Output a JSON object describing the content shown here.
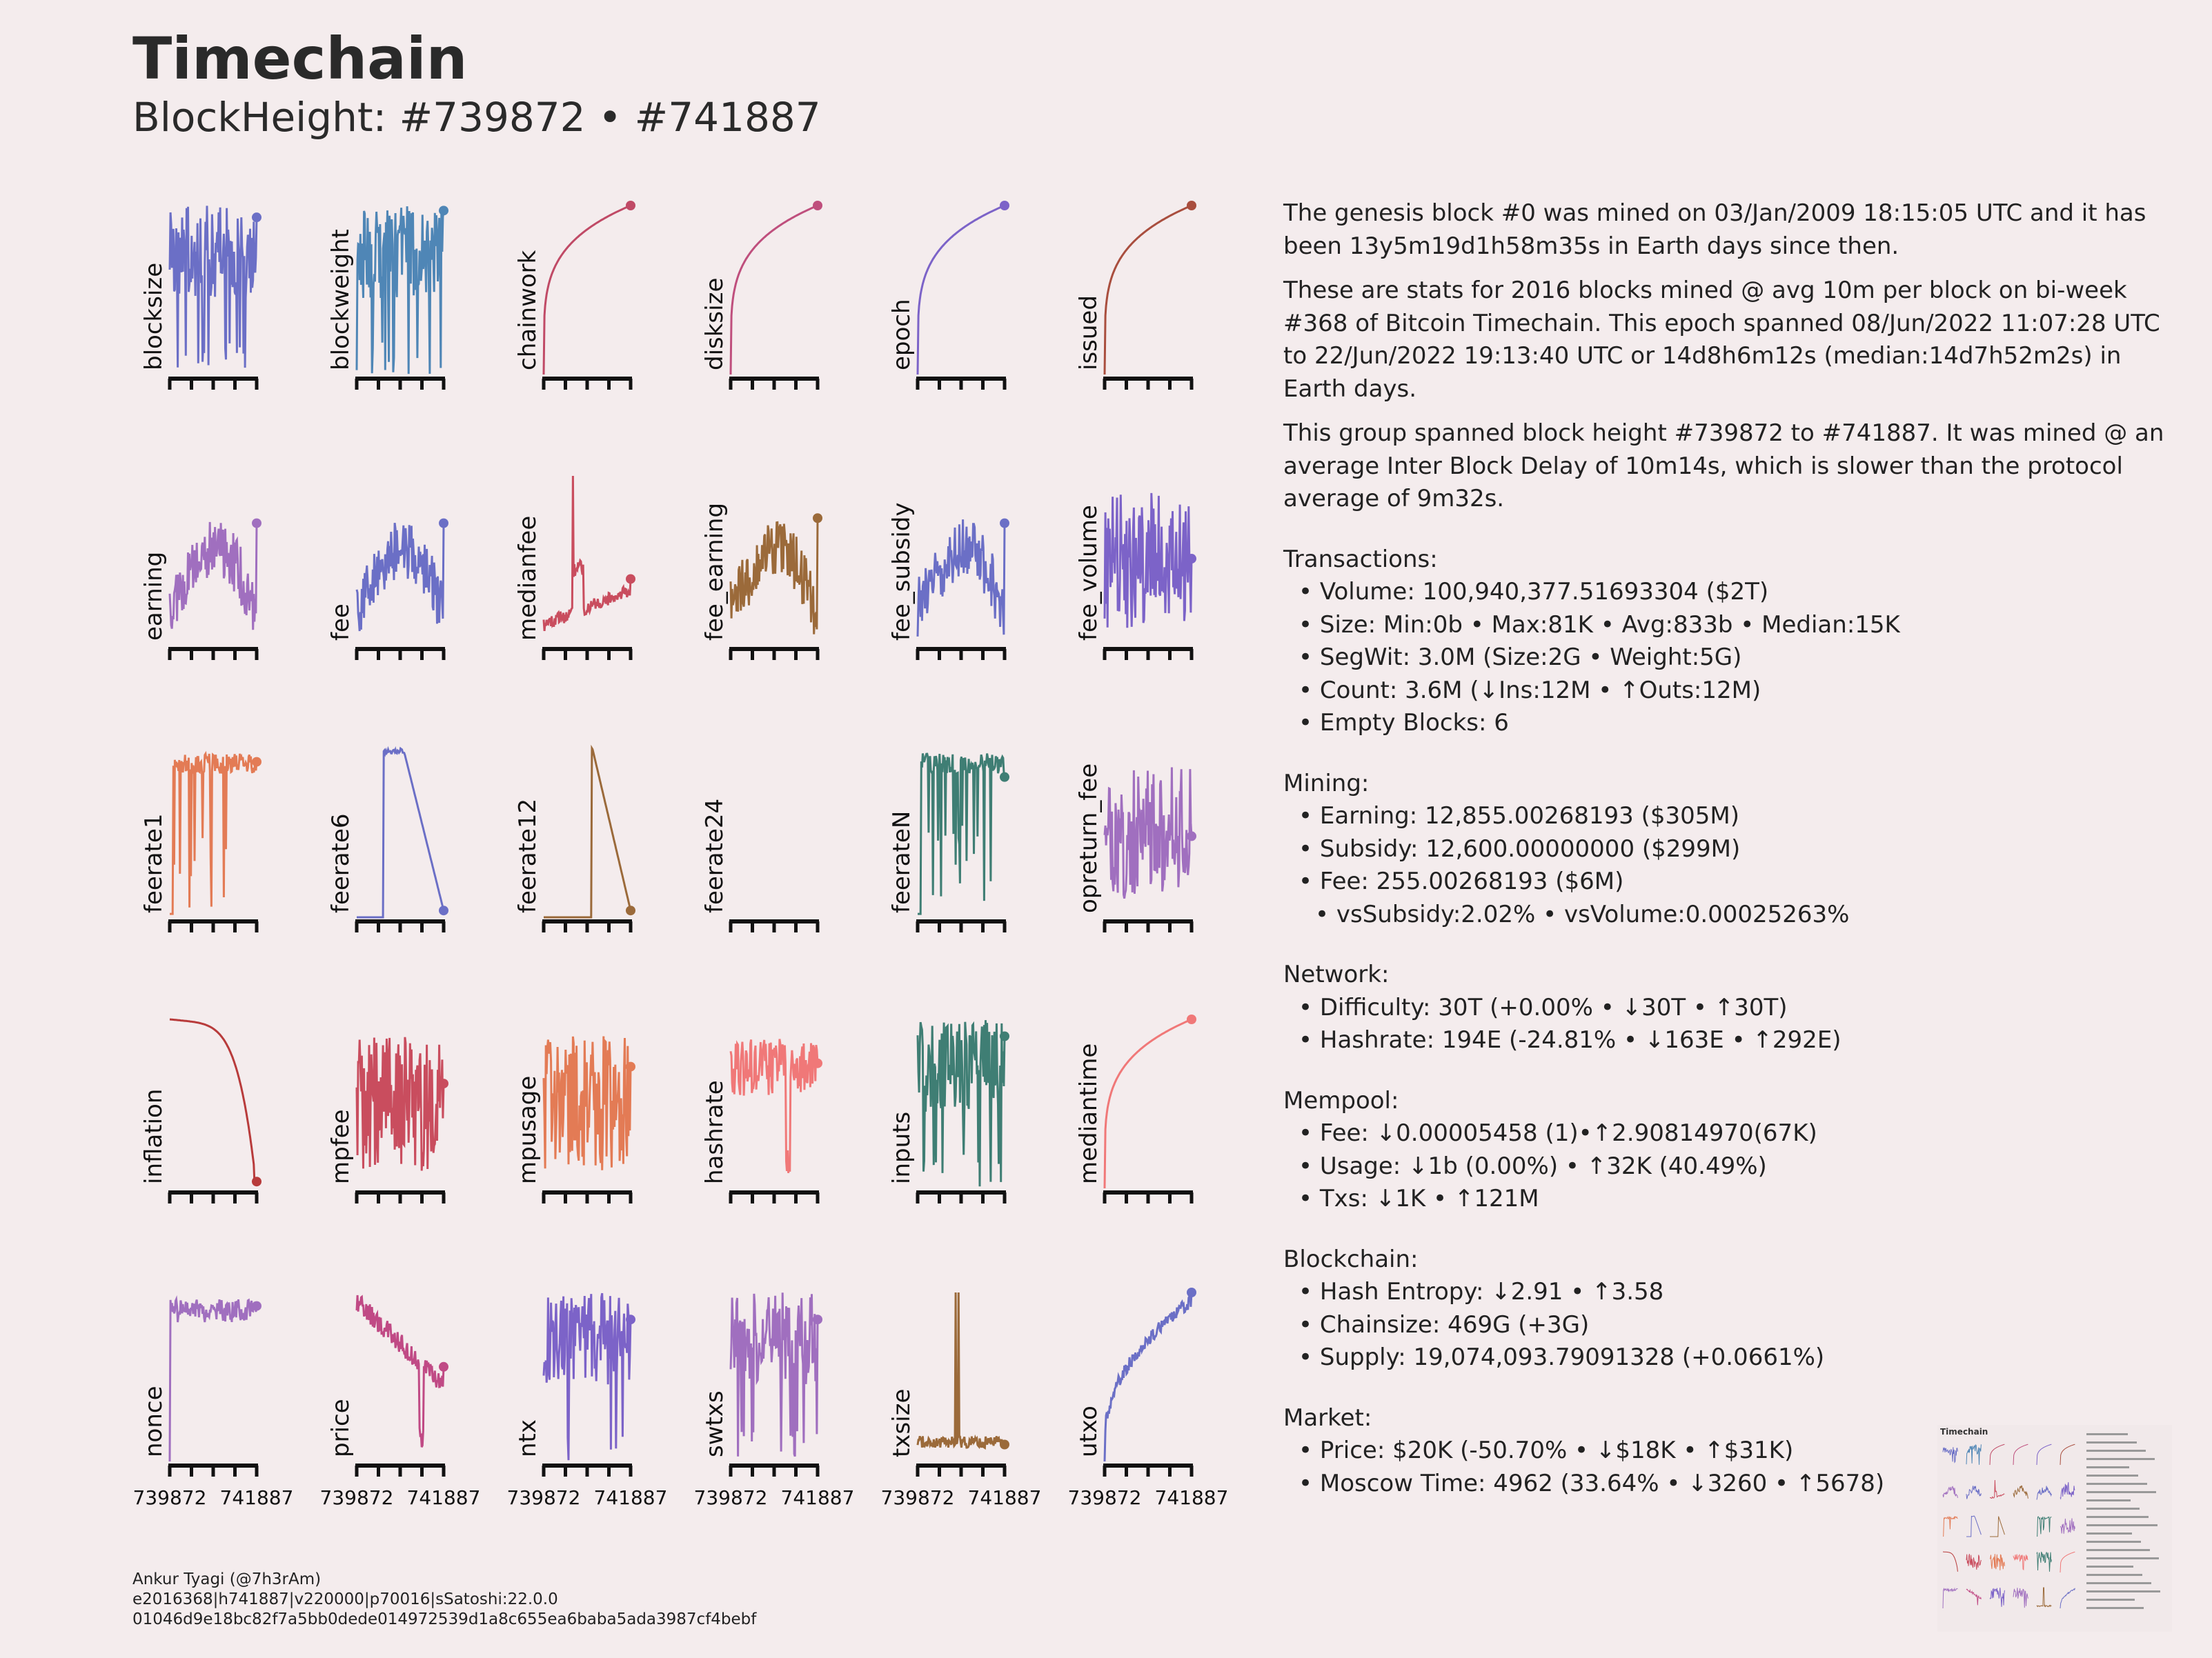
{
  "header": {
    "title": "Timechain",
    "subtitle": "BlockHeight: #739872 • #741887"
  },
  "chart_data": {
    "type": "line",
    "layout": "small-multiples 5x6, sparklines without y-axis values",
    "x_range": [
      739872,
      741887
    ],
    "x_tick_labels": [
      "739872",
      "741887"
    ],
    "panels": [
      {
        "name": "blocksize",
        "color": "#6b6fc6",
        "shape": "noisy_high",
        "end": 0.93
      },
      {
        "name": "blockweight",
        "color": "#4f86b6",
        "shape": "noisy_high",
        "end": 0.97
      },
      {
        "name": "chainwork",
        "color": "#c04a66",
        "shape": "log_rise",
        "end": 1.0
      },
      {
        "name": "disksize",
        "color": "#bf4f7d",
        "shape": "log_rise",
        "end": 1.0
      },
      {
        "name": "epoch",
        "color": "#7c63c8",
        "shape": "log_rise",
        "end": 1.0
      },
      {
        "name": "issued",
        "color": "#a94e3e",
        "shape": "log_rise",
        "end": 1.0
      },
      {
        "name": "earning",
        "color": "#a06fbf",
        "shape": "noisy_hump",
        "end": 0.72
      },
      {
        "name": "fee",
        "color": "#6b6fc6",
        "shape": "noisy_hump",
        "end": 0.72
      },
      {
        "name": "medianfee",
        "color": "#c94d5e",
        "shape": "spike_mid",
        "end": 0.39
      },
      {
        "name": "fee_earning",
        "color": "#9b6a3a",
        "shape": "noisy_hump",
        "end": 0.75
      },
      {
        "name": "fee_subsidy",
        "color": "#6b6fc6",
        "shape": "noisy_hump",
        "end": 0.72
      },
      {
        "name": "fee_volume",
        "color": "#7c63c8",
        "shape": "noisy_mid",
        "end": 0.51
      },
      {
        "name": "feerate1",
        "color": "#e37b55",
        "shape": "plateau_drops",
        "end": 0.92
      },
      {
        "name": "feerate6",
        "color": "#6b6fc6",
        "shape": "box_fall",
        "end": 0.04
      },
      {
        "name": "feerate12",
        "color": "#9b6a3a",
        "shape": "late_fall",
        "end": 0.04
      },
      {
        "name": "feerate24",
        "color": "#9b6a3a",
        "shape": "empty",
        "end": null
      },
      {
        "name": "feerateN",
        "color": "#3f7e74",
        "shape": "plateau_drops",
        "end": 0.83
      },
      {
        "name": "opreturn_fee",
        "color": "#a06fbf",
        "shape": "noisy_mid",
        "end": 0.48
      },
      {
        "name": "inflation",
        "color": "#b83b3b",
        "shape": "fall_curve",
        "end": 0.04
      },
      {
        "name": "mpfee",
        "color": "#c94d5e",
        "shape": "noisy_mid",
        "end": 0.62
      },
      {
        "name": "mpusage",
        "color": "#e37b55",
        "shape": "noisy_mid",
        "end": 0.72
      },
      {
        "name": "hashrate",
        "color": "#f07878",
        "shape": "high_dip",
        "end": 0.74
      },
      {
        "name": "inputs",
        "color": "#3f7e74",
        "shape": "noisy_high",
        "end": 0.9
      },
      {
        "name": "mediantime",
        "color": "#f07878",
        "shape": "log_rise",
        "end": 1.0
      },
      {
        "name": "nonce",
        "color": "#a06fbf",
        "shape": "jump_flat",
        "end": 0.92
      },
      {
        "name": "price",
        "color": "#c04a85",
        "shape": "decline_noisy",
        "end": 0.56
      },
      {
        "name": "ntx",
        "color": "#7c63c8",
        "shape": "noisy_high",
        "end": 0.84
      },
      {
        "name": "swtxs",
        "color": "#a06fbf",
        "shape": "noisy_high",
        "end": 0.84
      },
      {
        "name": "txsize",
        "color": "#9b6a3a",
        "shape": "flat_spikes",
        "end": 0.1
      },
      {
        "name": "utxo",
        "color": "#6b6fc6",
        "shape": "rise_noisy",
        "end": 1.0
      }
    ]
  },
  "stats": {
    "intro1": "The genesis block #0 was mined on 03/Jan/2009 18:15:05 UTC and it has been 13y5m19d1h58m35s in Earth days since then.",
    "intro2": "These are stats for 2016 blocks mined @ avg 10m per block on bi-week #368 of Bitcoin Timechain. This epoch spanned 08/Jun/2022 11:07:28 UTC to 22/Jun/2022 19:13:40 UTC or 14d8h6m12s (median:14d7h52m2s) in Earth days.",
    "intro3": "This group spanned block height #739872 to #741887. It was mined @ an average Inter Block Delay of 10m14s, which is slower than the protocol average of 9m32s.",
    "transactions": {
      "heading": "Transactions:",
      "volume": "Volume: 100,940,377.51693304 ($2T)",
      "size": "Size: Min:0b • Max:81K • Avg:833b • Median:15K",
      "segwit": "SegWit: 3.0M (Size:2G • Weight:5G)",
      "count": "Count: 3.6M (↓Ins:12M • ↑Outs:12M)",
      "empty": "Empty Blocks: 6"
    },
    "mining": {
      "heading": "Mining:",
      "earning": "Earning: 12,855.00268193 ($305M)",
      "subsidy": "Subsidy: 12,600.00000000 ($299M)",
      "fee": "Fee: 255.00268193 ($6M)",
      "vs": "vsSubsidy:2.02% • vsVolume:0.00025263%"
    },
    "network": {
      "heading": "Network:",
      "difficulty": "Difficulty: 30T (+0.00% • ↓30T • ↑30T)",
      "hashrate": "Hashrate: 194E (-24.81% • ↓163E • ↑292E)"
    },
    "mempool": {
      "heading": "Mempool:",
      "fee": "Fee: ↓0.00005458 (1)•↑2.90814970(67K)",
      "usage": "Usage: ↓1b (0.00%) • ↑32K (40.49%)",
      "txs": "Txs: ↓1K • ↑121M"
    },
    "blockchain": {
      "heading": "Blockchain:",
      "entropy": "Hash Entropy: ↓2.91 • ↑3.58",
      "chainsize": "Chainsize: 469G (+3G)",
      "supply": "Supply: 19,074,093.79091328 (+0.0661%)"
    },
    "market": {
      "heading": "Market:",
      "price": "Price: $20K (-50.70% • ↓$18K • ↑$31K)",
      "moscow": "Moscow Time: 4962 (33.64% • ↓3260 • ↑5678)"
    }
  },
  "footer": {
    "author": "Ankur Tyagi (@7h3rAm)",
    "meta": "e2016368|h741887|v220000|p70016|sSatoshi:22.0.0",
    "hash": "01046d9e18bc82f7a5bb0dede014972539d1a8c655ea6baba5ada3987cf4bebf"
  }
}
